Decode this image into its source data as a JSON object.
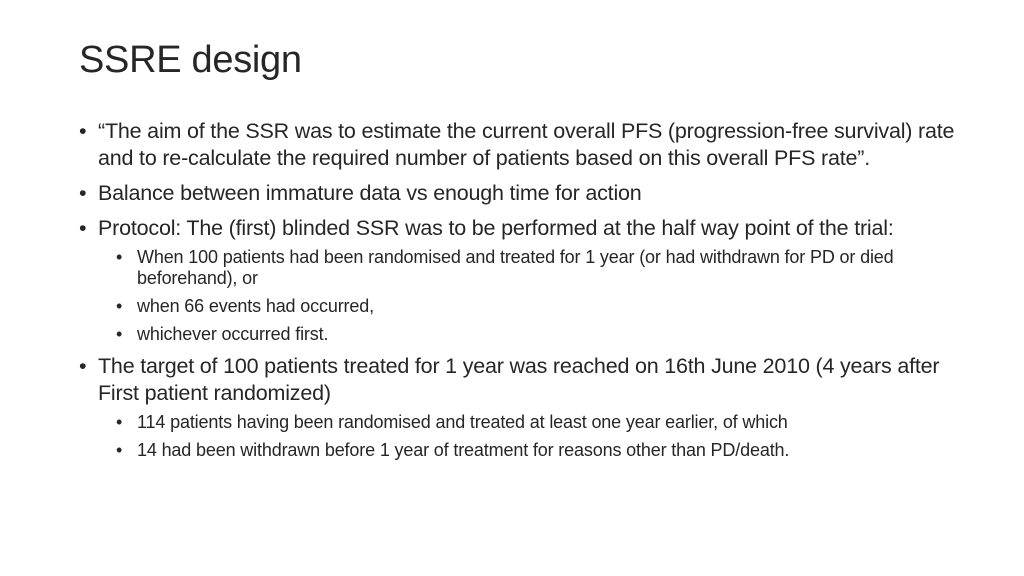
{
  "slide": {
    "title": "SSRE design",
    "bullet_symbol": "•",
    "items": [
      {
        "text": "“The aim of the SSR was to estimate the current overall PFS (progression-free survival) rate and to re-calculate the required number of patients based on this overall PFS rate”."
      },
      {
        "text": "Balance between immature data vs enough time for action"
      },
      {
        "text": "Protocol: The (first) blinded SSR was to be performed at the half way point of the trial:",
        "subitems": [
          "When 100 patients had been randomised and treated for 1 year (or had withdrawn for PD or died beforehand), or",
          "when 66 events had occurred,",
          "whichever occurred first."
        ]
      },
      {
        "text": "The target of 100 patients treated for 1 year was reached on 16th June 2010 (4 years after First patient randomized)",
        "subitems": [
          "114 patients having been randomised and treated at least one year earlier, of which",
          "14 had been withdrawn before 1 year of treatment for reasons other than PD/death."
        ]
      }
    ]
  }
}
